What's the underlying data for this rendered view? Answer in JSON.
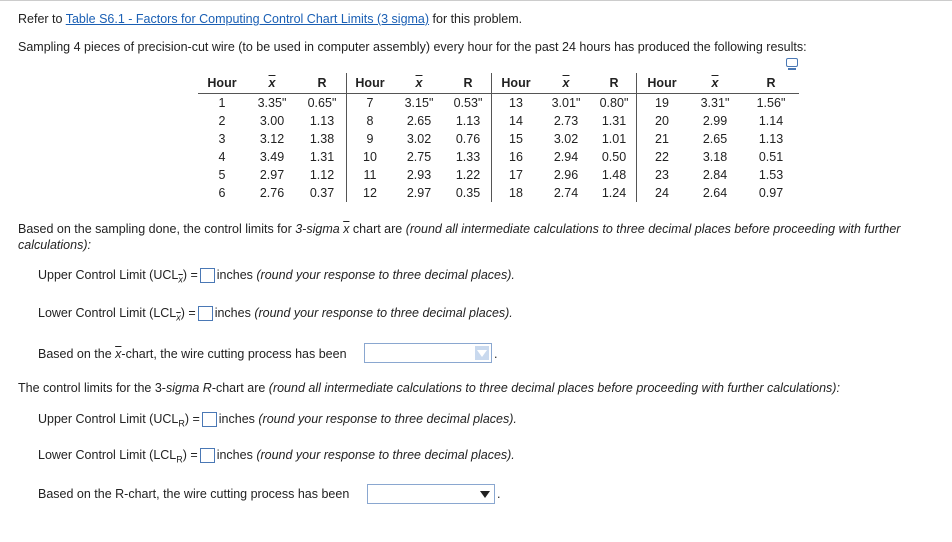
{
  "intro": {
    "prefix": "Refer to ",
    "link": "Table S6.1 - Factors for Computing Control Chart Limits (3 sigma)",
    "suffix": " for this problem."
  },
  "problem": "Sampling 4 pieces of precision-cut wire (to be used in computer assembly) every hour for the past 24 hours has produced the following results:",
  "table": {
    "headers": [
      "Hour",
      "x",
      "R",
      "Hour",
      "x",
      "R",
      "Hour",
      "x",
      "R",
      "Hour",
      "x",
      "R"
    ],
    "rows": [
      [
        "1",
        "3.35\"",
        "0.65\"",
        "7",
        "3.15\"",
        "0.53\"",
        "13",
        "3.01\"",
        "0.80\"",
        "19",
        "3.31\"",
        "1.56\""
      ],
      [
        "2",
        "3.00",
        "1.13",
        "8",
        "2.65",
        "1.13",
        "14",
        "2.73",
        "1.31",
        "20",
        "2.99",
        "1.14"
      ],
      [
        "3",
        "3.12",
        "1.38",
        "9",
        "3.02",
        "0.76",
        "15",
        "3.02",
        "1.01",
        "21",
        "2.65",
        "1.13"
      ],
      [
        "4",
        "3.49",
        "1.31",
        "10",
        "2.75",
        "1.33",
        "16",
        "2.94",
        "0.50",
        "22",
        "3.18",
        "0.51"
      ],
      [
        "5",
        "2.97",
        "1.12",
        "11",
        "2.93",
        "1.22",
        "17",
        "2.96",
        "1.48",
        "23",
        "2.84",
        "1.53"
      ],
      [
        "6",
        "2.76",
        "0.37",
        "12",
        "2.97",
        "0.35",
        "18",
        "2.74",
        "1.24",
        "24",
        "2.64",
        "0.97"
      ]
    ]
  },
  "xchart": {
    "intro_a": "Based on the sampling done, the control limits for ",
    "intro_b": "3-sigma",
    "intro_c": "x",
    "intro_d": " chart are ",
    "intro_e": "(round all intermediate calculations to three decimal places before proceeding with further",
    "intro_f": "calculations):",
    "ucl_label": "Upper Control Limit (UCL",
    "ucl_sub": "x",
    "lcl_label": "Lower Control Limit (LCL",
    "lcl_sub": "x",
    "eq": ") =",
    "unit": "inches",
    "round_note": "(round your response to three decimal places).",
    "conclusion_a": "Based on the ",
    "conclusion_b": "x",
    "conclusion_c": "-chart, the wire cutting process has been"
  },
  "rchart": {
    "intro_a": "The control limits for the 3-",
    "intro_b": "sigma R",
    "intro_c": "-chart are ",
    "intro_d": "(round all intermediate calculations to three decimal places before proceeding with further calculations):",
    "ucl_label": "Upper Control Limit (UCL",
    "lcl_label": "Lower Control Limit (LCL",
    "sub": "R",
    "eq": ") =",
    "unit": "inches",
    "round_note": "(round your response to three decimal places).",
    "conclusion": "Based on the R-chart, the wire cutting process has been"
  }
}
